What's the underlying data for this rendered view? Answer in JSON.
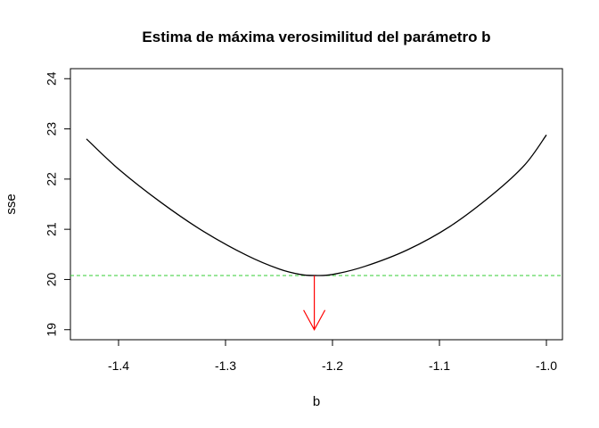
{
  "chart_data": {
    "type": "line",
    "title": "Estima de máxima verosimilitud del parámetro b",
    "xlabel": "b",
    "ylabel": "sse",
    "xlim": [
      -1.445,
      -0.985
    ],
    "ylim": [
      18.8,
      24.2
    ],
    "x_ticks": [
      -1.4,
      -1.3,
      -1.2,
      -1.1,
      -1.0
    ],
    "x_tick_labels": [
      "-1.4",
      "-1.3",
      "-1.2",
      "-1.1",
      "-1.0"
    ],
    "y_ticks": [
      19,
      20,
      21,
      22,
      23,
      24
    ],
    "y_tick_labels": [
      "19",
      "20",
      "21",
      "22",
      "23",
      "24"
    ],
    "grid": false,
    "series": [
      {
        "color": "#000000",
        "x": [
          -1.43,
          -1.4,
          -1.36,
          -1.32,
          -1.28,
          -1.25,
          -1.23,
          -1.217,
          -1.2,
          -1.17,
          -1.13,
          -1.09,
          -1.05,
          -1.02,
          -1.0
        ],
        "y": [
          22.8,
          22.2,
          21.53,
          20.95,
          20.48,
          20.21,
          20.1,
          20.08,
          20.1,
          20.26,
          20.59,
          21.06,
          21.7,
          22.29,
          22.88
        ]
      }
    ],
    "hline": {
      "y": 20.08,
      "color": "#33cc33",
      "style": "dashed"
    },
    "arrow": {
      "x": -1.217,
      "y_from": 20.08,
      "y_to": 19.0,
      "color": "#ff0000"
    }
  }
}
